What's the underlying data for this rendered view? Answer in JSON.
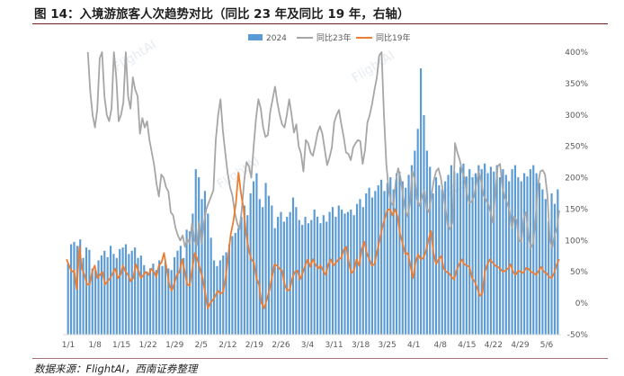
{
  "header": {
    "title": "图 14：入境游旅客人次趋势对比（同比 23 年及同比 19 年，右轴）"
  },
  "footer": {
    "source": "数据来源：FlightAI，西南证券整理"
  },
  "watermark": "FlightAI",
  "colors": {
    "bar": "#5b9bd5",
    "yoy23": "#a6a6a6",
    "yoy19": "#ed7d31",
    "axis": "#d9d9d9",
    "title_rule": "#7a1f1f"
  },
  "chart_data": {
    "type": "bar",
    "title": "",
    "xlabel": "",
    "ylabel": "",
    "y2lim": [
      -50,
      400
    ],
    "y2_ticks": [
      "-50%",
      "0%",
      "50%",
      "100%",
      "150%",
      "200%",
      "250%",
      "300%",
      "350%",
      "400%"
    ],
    "x_ticks": [
      "1/1",
      "1/8",
      "1/15",
      "1/22",
      "1/29",
      "2/5",
      "2/12",
      "2/19",
      "2/26",
      "3/4",
      "3/11",
      "3/18",
      "3/25",
      "4/1",
      "4/8",
      "4/15",
      "4/22",
      "4/29",
      "5/6"
    ],
    "grid": false,
    "legend": "top-center",
    "series": [
      {
        "name": "2024",
        "kind": "bar",
        "axis": "left",
        "values": [
          88,
          112,
          115,
          110,
          118,
          95,
          108,
          105,
          82,
          80,
          92,
          98,
          104,
          96,
          110,
          100,
          95,
          106,
          108,
          112,
          100,
          104,
          108,
          95,
          98,
          86,
          78,
          82,
          88,
          80,
          92,
          85,
          90,
          82,
          80,
          96,
          104,
          110,
          95,
          130,
          128,
          150,
          205,
          195,
          168,
          178,
          150,
          120,
          92,
          85,
          92,
          98,
          102,
          112,
          122,
          126,
          132,
          146,
          160,
          148,
          175,
          190,
          200,
          168,
          158,
          188,
          172,
          160,
          132,
          146,
          152,
          140,
          146,
          152,
          170,
          158,
          142,
          136,
          146,
          138,
          142,
          155,
          146,
          138,
          148,
          140,
          152,
          158,
          146,
          160,
          155,
          150,
          152,
          155,
          148,
          162,
          168,
          158,
          175,
          182,
          170,
          178,
          185,
          192,
          178,
          188,
          195,
          180,
          200,
          202,
          190,
          182,
          198,
          210,
          228,
          255,
          330,
          272,
          228,
          208,
          175,
          195,
          185,
          180,
          190,
          198,
          210,
          202,
          200,
          208,
          212,
          196,
          205,
          195,
          200,
          210,
          205,
          212,
          200,
          208,
          202,
          210,
          195,
          205,
          198,
          190,
          205,
          210,
          195,
          190,
          200,
          196,
          205,
          210,
          200,
          188,
          180,
          168,
          140,
          175,
          162,
          180
        ],
        "y_min": 0,
        "y_max": 350
      },
      {
        "name": "同比23年",
        "kind": "line",
        "axis": "right",
        "values": [
          null,
          null,
          null,
          null,
          null,
          null,
          null,
          null,
          null,
          400,
          338,
          300,
          280,
          310,
          390,
          400,
          330,
          300,
          290,
          310,
          400,
          360,
          290,
          300,
          320,
          400,
          330,
          310,
          360,
          340,
          330,
          270,
          295,
          280,
          290,
          260,
          240,
          220,
          190,
          170,
          205,
          200,
          185,
          178,
          145,
          140,
          120,
          108,
          100,
          108,
          90,
          102,
          95,
          128,
          100,
          92,
          130,
          95,
          128,
          150,
          160,
          170,
          180,
          260,
          300,
          325,
          275,
          240,
          208,
          185,
          172,
          145,
          128,
          118,
          150,
          195,
          225,
          218,
          200,
          250,
          295,
          325,
          310,
          280,
          265,
          268,
          305,
          325,
          345,
          320,
          300,
          285,
          280,
          300,
          325,
          300,
          272,
          285,
          250,
          238,
          210,
          260,
          255,
          240,
          235,
          252,
          272,
          282,
          270,
          245,
          220,
          232,
          248,
          288,
          300,
          308,
          285,
          265,
          240,
          238,
          228,
          248,
          255,
          260,
          258,
          222,
          244,
          288,
          300,
          318,
          340,
          360,
          395,
          400,
          300,
          222,
          180,
          160,
          155,
          195,
          215,
          200,
          172,
          148,
          138,
          160,
          210,
          198,
          165,
          155,
          168,
          180,
          152,
          145,
          170,
          195,
          210,
          215,
          200,
          176,
          150,
          123,
          118,
          130,
          255,
          240,
          228,
          210,
          200,
          175,
          160,
          162,
          170,
          190,
          210,
          195,
          172,
          165,
          158,
          145,
          128,
          176,
          218,
          222,
          185,
          168,
          160,
          148,
          120,
          138,
          132,
          100,
          98,
          136,
          145,
          108,
          88,
          96,
          134,
          188,
          210,
          212,
          205,
          172,
          102,
          88,
          108,
          120,
          148
        ],
        "y_min": -50,
        "y_max": 400
      },
      {
        "name": "同比19年",
        "kind": "line",
        "axis": "right",
        "values": [
          70,
          60,
          50,
          52,
          22,
          90,
          55,
          45,
          30,
          30,
          50,
          60,
          40,
          45,
          50,
          30,
          35,
          40,
          48,
          55,
          40,
          45,
          60,
          50,
          45,
          35,
          40,
          62,
          52,
          40,
          45,
          50,
          45,
          55,
          50,
          42,
          60,
          65,
          80,
          55,
          30,
          20,
          32,
          45,
          50,
          70,
          52,
          30,
          28,
          55,
          80,
          70,
          55,
          40,
          18,
          -8,
          0,
          5,
          12,
          20,
          15,
          18,
          40,
          75,
          110,
          130,
          160,
          208,
          175,
          150,
          110,
          85,
          70,
          65,
          40,
          30,
          0,
          -8,
          5,
          20,
          40,
          62,
          60,
          55,
          52,
          30,
          20,
          22,
          40,
          50,
          52,
          38,
          48,
          60,
          70,
          58,
          70,
          62,
          55,
          60,
          52,
          45,
          62,
          70,
          60,
          65,
          70,
          72,
          85,
          90,
          65,
          48,
          52,
          70,
          60,
          85,
          98,
          80,
          70,
          60,
          62,
          82,
          100,
          120,
          135,
          148,
          150,
          140,
          150,
          138,
          110,
          95,
          78,
          80,
          60,
          40,
          65,
          78,
          70,
          72,
          82,
          100,
          115,
          80,
          62,
          70,
          75,
          55,
          50,
          48,
          42,
          38,
          52,
          62,
          70,
          62,
          60,
          58,
          40,
          35,
          25,
          12,
          15,
          50,
          62,
          70,
          65,
          60,
          58,
          55,
          50,
          52,
          55,
          62,
          50,
          45,
          52,
          50,
          48,
          56,
          55,
          50,
          48,
          45,
          52,
          58,
          50,
          48,
          42,
          40,
          48,
          62,
          70
        ],
        "y_min": -50,
        "y_max": 400
      }
    ]
  }
}
